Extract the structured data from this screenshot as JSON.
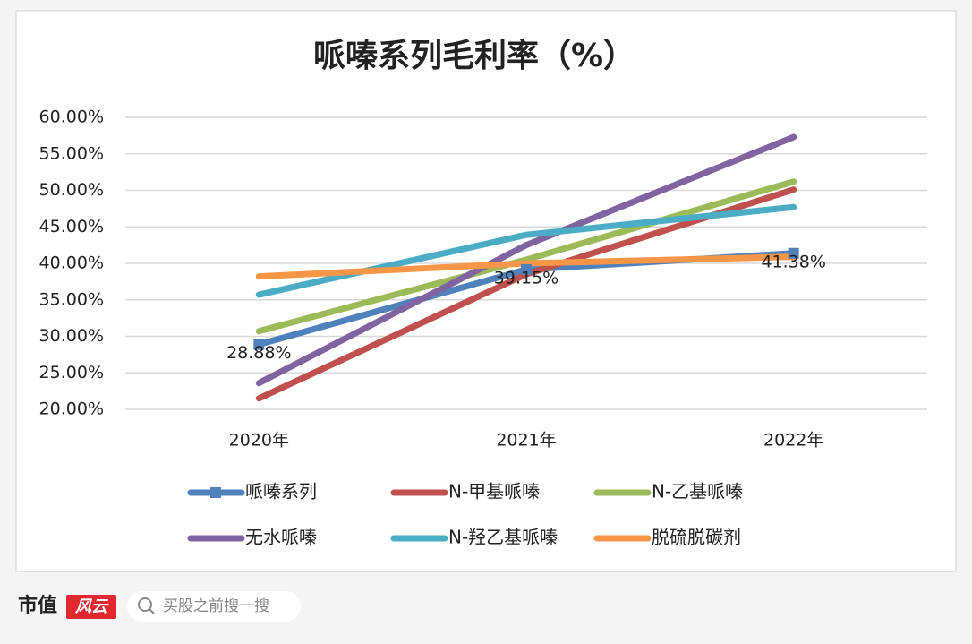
{
  "chart_data": {
    "type": "line",
    "title": "哌嗪系列毛利率（%）",
    "categories": [
      "2020年",
      "2021年",
      "2022年"
    ],
    "series": [
      {
        "name": "哌嗪系列",
        "color": "#4f81bd",
        "marker": "square",
        "values": [
          28.88,
          39.15,
          41.38
        ],
        "value_labels": [
          "28.88%",
          "39.15%",
          "41.38%"
        ]
      },
      {
        "name": "N-甲基哌嗪",
        "color": "#c0504d",
        "values": [
          21.5,
          38.5,
          50.1
        ]
      },
      {
        "name": "N-乙基哌嗪",
        "color": "#9bbb59",
        "values": [
          30.7,
          40.5,
          51.2
        ]
      },
      {
        "name": "无水哌嗪",
        "color": "#8064a2",
        "values": [
          23.6,
          42.5,
          57.3
        ]
      },
      {
        "name": "N-羟乙基哌嗪",
        "color": "#4bacc6",
        "values": [
          35.7,
          43.9,
          47.7
        ]
      },
      {
        "name": "脱硫脱碳剂",
        "color": "#f79646",
        "values": [
          38.2,
          40.0,
          40.9
        ]
      }
    ],
    "ylim": [
      20,
      60
    ],
    "yticks": [
      {
        "value": 20,
        "label": "20.00%"
      },
      {
        "value": 25,
        "label": "25.00%"
      },
      {
        "value": 30,
        "label": "30.00%"
      },
      {
        "value": 35,
        "label": "35.00%"
      },
      {
        "value": 40,
        "label": "40.00%"
      },
      {
        "value": 45,
        "label": "45.00%"
      },
      {
        "value": 50,
        "label": "50.00%"
      },
      {
        "value": 55,
        "label": "55.00%"
      },
      {
        "value": 60,
        "label": "60.00%"
      }
    ],
    "grid": true,
    "legend": "bottom"
  },
  "footer": {
    "brand": "市值",
    "brand_badge": "风云",
    "search_placeholder": "买股之前搜一搜"
  }
}
